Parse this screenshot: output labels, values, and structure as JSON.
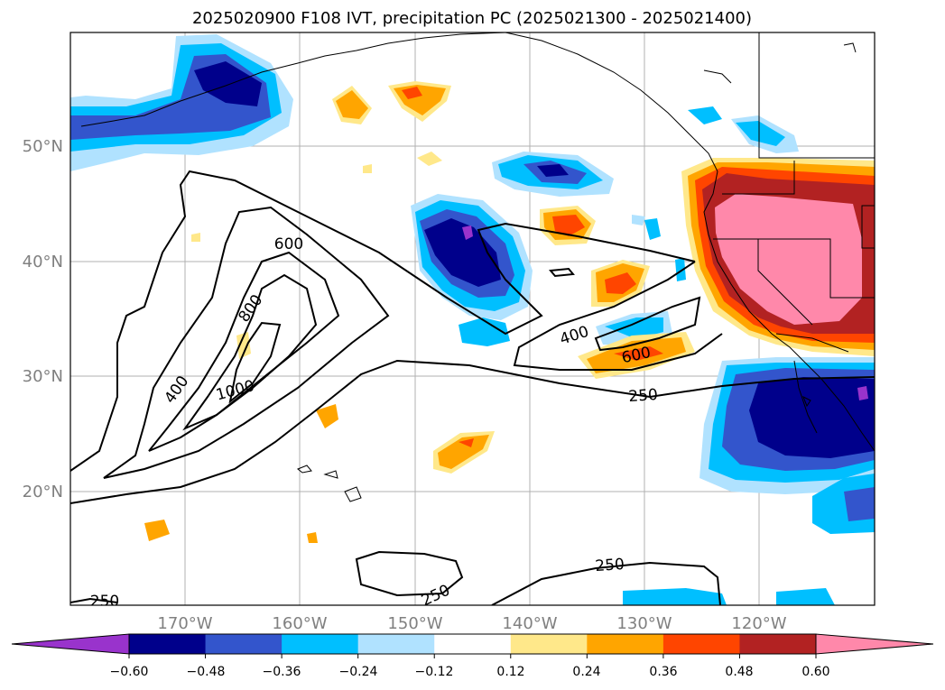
{
  "title": "2025020900 F108 IVT, precipitation PC (2025021300 - 2025021400)",
  "map": {
    "lon_ticks": [
      "170°W",
      "160°W",
      "150°W",
      "140°W",
      "130°W",
      "120°W"
    ],
    "lat_ticks": [
      "50°N",
      "40°N",
      "30°N",
      "20°N"
    ],
    "grid": true,
    "contour_labels": [
      "600",
      "800",
      "400",
      "1000",
      "400",
      "600",
      "250",
      "250",
      "250",
      "250"
    ]
  },
  "colorbar": {
    "ticks": [
      "−0.60",
      "−0.48",
      "−0.36",
      "−0.24",
      "−0.12",
      "0.12",
      "0.24",
      "0.36",
      "0.48",
      "0.60"
    ],
    "colors": [
      "#9933cc",
      "#00008b",
      "#3355cc",
      "#00bfff",
      "#b0e2ff",
      "#ffffff",
      "#ffe88a",
      "#ffa500",
      "#ff4500",
      "#b22222",
      "#ff88aa"
    ],
    "extend": "both"
  }
}
